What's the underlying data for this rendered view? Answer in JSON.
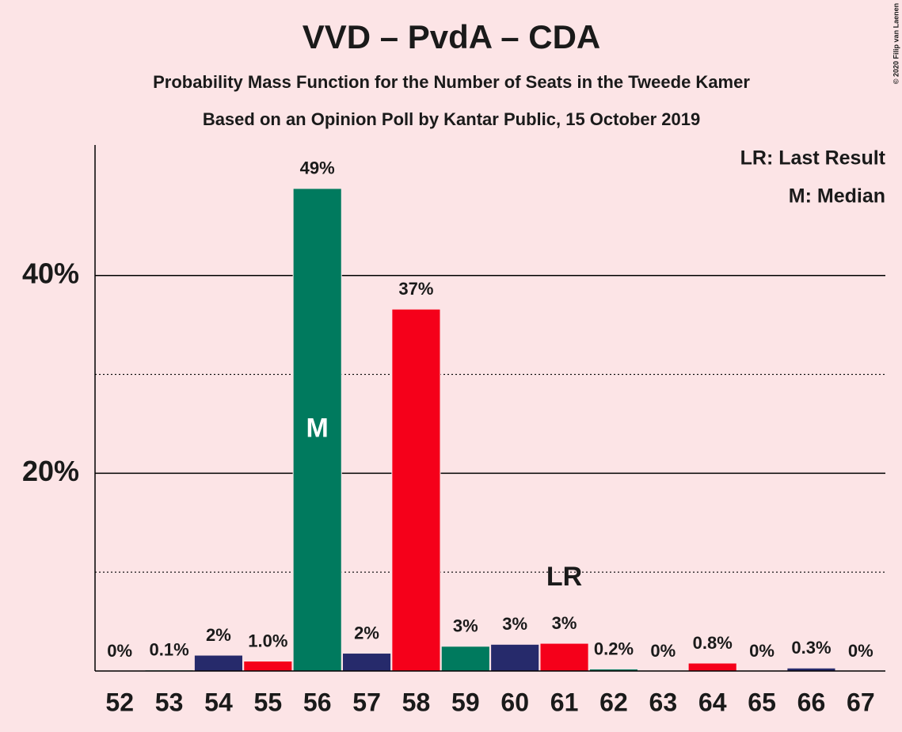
{
  "chart_data": {
    "type": "bar",
    "title": "VVD – PvdA – CDA",
    "subtitle": "Probability Mass Function for the Number of Seats in the Tweede Kamer",
    "subtitle2": "Based on an Opinion Poll by Kantar Public, 15 October 2019",
    "categories": [
      "52",
      "53",
      "54",
      "55",
      "56",
      "57",
      "58",
      "59",
      "60",
      "61",
      "62",
      "63",
      "64",
      "65",
      "66",
      "67"
    ],
    "values": [
      0,
      0.1,
      1.6,
      1.0,
      48.8,
      1.8,
      36.6,
      2.5,
      2.7,
      2.8,
      0.2,
      0,
      0.8,
      0,
      0.3,
      0
    ],
    "value_labels": [
      "0%",
      "0.1%",
      "2%",
      "1.0%",
      "49%",
      "2%",
      "37%",
      "3%",
      "3%",
      "3%",
      "0.2%",
      "0%",
      "0.8%",
      "0%",
      "0.3%",
      "0%"
    ],
    "colors": [
      "#f5001a",
      "#007a5e",
      "#262a6b",
      "#f5001a",
      "#007a5e",
      "#262a6b",
      "#f5001a",
      "#007a5e",
      "#262a6b",
      "#f5001a",
      "#007a5e",
      "#262a6b",
      "#f5001a",
      "#007a5e",
      "#262a6b",
      "#f5001a"
    ],
    "ylim": [
      0,
      53.2
    ],
    "yticks": [
      {
        "value": 20,
        "label": "20%"
      },
      {
        "value": 40,
        "label": "40%"
      }
    ],
    "yminor": [
      10,
      30
    ],
    "grid": true,
    "annotations": [
      {
        "text": "M",
        "category": "56",
        "position": "inside"
      },
      {
        "text": "LR",
        "category": "61",
        "position": "above"
      }
    ],
    "legend_notes": [
      "LR: Last Result",
      "M: Median"
    ],
    "credit": "© 2020 Filip van Laenen"
  }
}
